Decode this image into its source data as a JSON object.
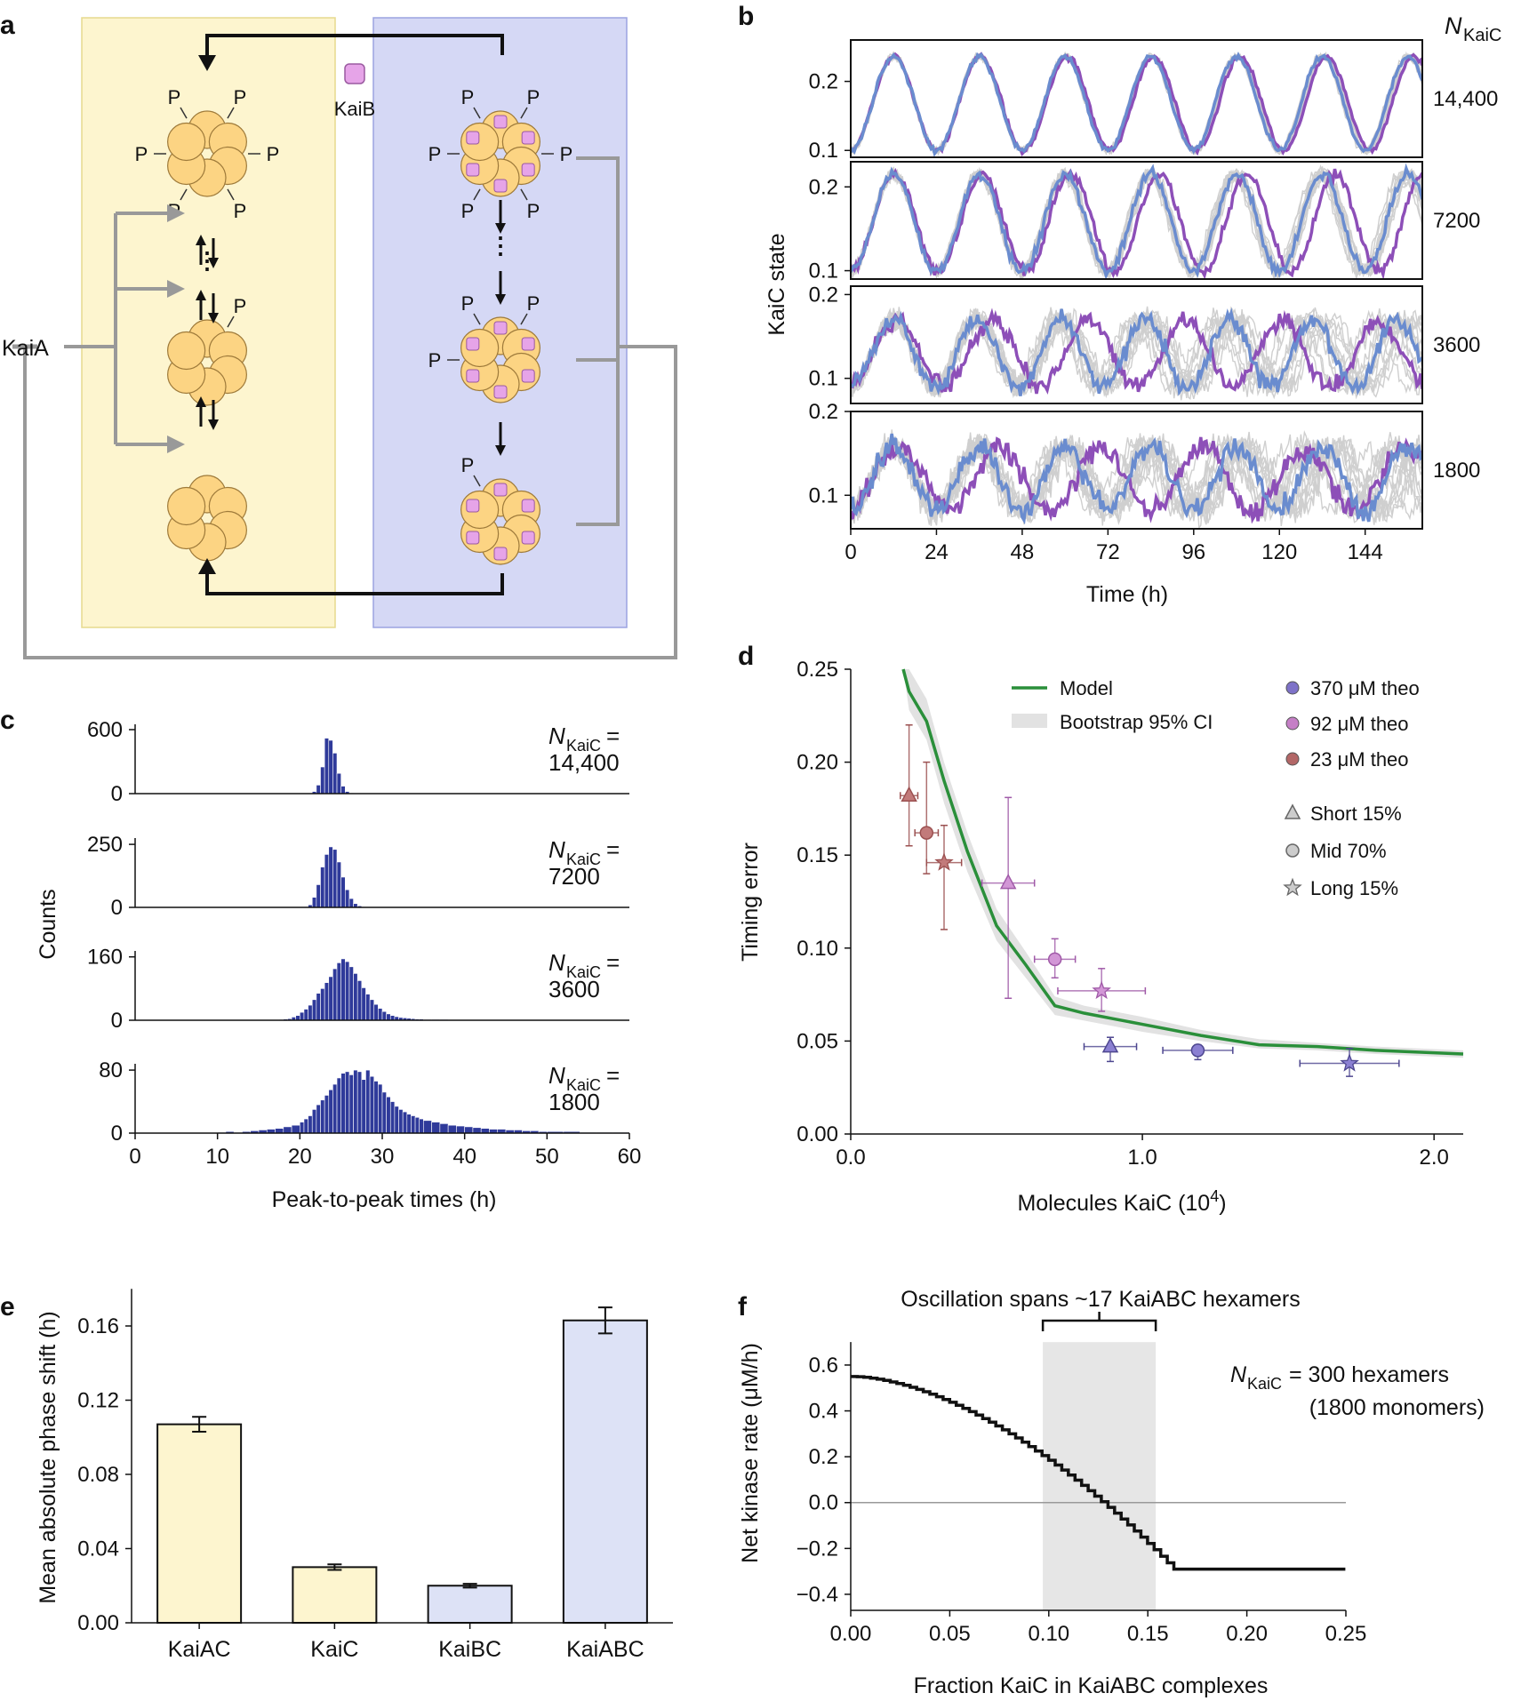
{
  "panel_labels": [
    "a",
    "b",
    "c",
    "d",
    "e",
    "f"
  ],
  "panel_a": {
    "kaib_label": "KaiB",
    "kaia_label": "KaiA",
    "phospho": "P",
    "ellipsis": "⋮",
    "colors": {
      "left_box": "#fdf5cf",
      "right_box": "#d5d8f5",
      "subunit": "#fcd483",
      "kaib": "#e6a4e8"
    }
  },
  "chart_data": [
    {
      "id": "b",
      "type": "line",
      "xlabel": "Time (h)",
      "ylabel": "KaiC state",
      "x_ticks": [
        0,
        24,
        48,
        72,
        96,
        120,
        144
      ],
      "xlim": [
        0,
        160
      ],
      "n_header_symbol": "N",
      "n_header_sub": "KaiC",
      "series_colors": {
        "trajectory_1": "#6a8ccf",
        "trajectory_2": "#8d4fb8",
        "ensemble": "#cfcfcf"
      },
      "rows": [
        {
          "n_label": "14,400",
          "ylim": [
            0.09,
            0.26
          ],
          "y_ticks": [
            0.1,
            0.2
          ],
          "y_tick_labels": [
            "0.1",
            "0.2"
          ],
          "mean": 0.168,
          "amp": 0.068,
          "period": 24.0,
          "drift": 0.0,
          "noise": 0.004,
          "period_b": 24.25,
          "spread": 0.5
        },
        {
          "n_label": "7200",
          "ylim": [
            0.09,
            0.23
          ],
          "y_ticks": [
            0.1,
            0.2
          ],
          "y_tick_labels": [
            "0.1",
            "0.2"
          ],
          "mean": 0.157,
          "amp": 0.058,
          "period": 24.0,
          "drift": 0.0,
          "noise": 0.006,
          "period_b": 24.7,
          "spread": 1.2
        },
        {
          "n_label": "3600",
          "ylim": [
            0.07,
            0.21
          ],
          "y_ticks": [
            0.1,
            0.2
          ],
          "y_tick_labels": [
            "0.1",
            "0.2"
          ],
          "mean": 0.13,
          "amp": 0.04,
          "period": 23.5,
          "drift": 0.0,
          "noise": 0.01,
          "period_b": 27.0,
          "spread": 2.5
        },
        {
          "n_label": "1800",
          "ylim": [
            0.06,
            0.2
          ],
          "y_ticks": [
            0.1,
            0.2
          ],
          "y_tick_labels": [
            "0.1",
            "0.2"
          ],
          "mean": 0.12,
          "amp": 0.038,
          "period": 24.0,
          "drift": 0.0,
          "noise": 0.013,
          "period_b": 28.5,
          "spread": 4.0
        }
      ]
    },
    {
      "id": "c",
      "type": "bar",
      "title": "Peak-to-peak times histograms",
      "xlabel": "Peak-to-peak times (h)",
      "ylabel": "Counts",
      "xlim": [
        0,
        60
      ],
      "x_ticks": [
        0,
        10,
        20,
        30,
        40,
        50,
        60
      ],
      "bar_color": "#2f3a9a",
      "rows": [
        {
          "n_label_1": "N",
          "n_label_sub": "KaiC",
          "n_label_eq": " =",
          "n_label_value": "14,400",
          "y_ticks": [
            0,
            600
          ],
          "ymax": 650,
          "bins": [
            21.5,
            22,
            22.5,
            23,
            23.5,
            24,
            24.5,
            25,
            25.5,
            26
          ],
          "values": [
            20,
            80,
            250,
            520,
            500,
            380,
            190,
            70,
            20,
            5
          ]
        },
        {
          "n_label_1": "N",
          "n_label_sub": "KaiC",
          "n_label_eq": " =",
          "n_label_value": "7200",
          "y_ticks": [
            0,
            250
          ],
          "ymax": 275,
          "bins": [
            20.5,
            21,
            21.5,
            22,
            22.5,
            23,
            23.5,
            24,
            24.5,
            25,
            25.5,
            26,
            26.5,
            27,
            27.5
          ],
          "values": [
            3,
            10,
            40,
            90,
            160,
            210,
            240,
            230,
            180,
            120,
            70,
            35,
            15,
            6,
            2
          ]
        },
        {
          "n_label_1": "N",
          "n_label_sub": "KaiC",
          "n_label_eq": " =",
          "n_label_value": "3600",
          "y_ticks": [
            0,
            160
          ],
          "ymax": 175,
          "bins": [
            17,
            17.5,
            18,
            18.5,
            19,
            19.5,
            20,
            20.5,
            21,
            21.5,
            22,
            22.5,
            23,
            23.5,
            24,
            24.5,
            25,
            25.5,
            26,
            26.5,
            27,
            27.5,
            28,
            28.5,
            29,
            29.5,
            30,
            30.5,
            31,
            31.5,
            32,
            32.5,
            33,
            33.5,
            34,
            34.5,
            35,
            36,
            37,
            38,
            39,
            40,
            41,
            42
          ],
          "values": [
            1,
            2,
            3,
            4,
            8,
            12,
            20,
            28,
            38,
            52,
            68,
            80,
            95,
            110,
            130,
            145,
            155,
            148,
            135,
            118,
            100,
            82,
            66,
            52,
            40,
            30,
            22,
            16,
            12,
            9,
            7,
            6,
            5,
            4,
            3,
            3,
            2,
            2,
            2,
            1,
            1,
            1,
            1,
            1
          ]
        },
        {
          "n_label_1": "N",
          "n_label_sub": "KaiC",
          "n_label_eq": " =",
          "n_label_value": "1800",
          "y_ticks": [
            0,
            80
          ],
          "ymax": 88,
          "bins": [
            10,
            11,
            12,
            13,
            14,
            15,
            16,
            17,
            18,
            19,
            20,
            20.5,
            21,
            21.5,
            22,
            22.5,
            23,
            23.5,
            24,
            24.5,
            25,
            25.5,
            26,
            26.5,
            27,
            27.5,
            28,
            28.5,
            29,
            29.5,
            30,
            30.5,
            31,
            31.5,
            32,
            32.5,
            33,
            33.5,
            34,
            34.5,
            35,
            36,
            37,
            38,
            39,
            40,
            41,
            42,
            43,
            44,
            45,
            46,
            47,
            48,
            49,
            50,
            52,
            54,
            56,
            58
          ],
          "values": [
            1,
            2,
            1,
            2,
            3,
            4,
            5,
            6,
            8,
            10,
            14,
            18,
            22,
            30,
            36,
            42,
            48,
            55,
            62,
            70,
            76,
            78,
            74,
            80,
            78,
            68,
            80,
            72,
            66,
            62,
            52,
            46,
            40,
            34,
            30,
            27,
            24,
            22,
            20,
            18,
            16,
            14,
            12,
            10,
            9,
            8,
            7,
            6,
            5,
            5,
            4,
            4,
            3,
            3,
            2,
            2,
            2,
            1,
            1,
            1
          ]
        }
      ]
    },
    {
      "id": "d",
      "type": "scatter",
      "xlabel_main": "Molecules KaiC (10",
      "xlabel_sup": "4",
      "xlabel_end": ")",
      "ylabel": "Timing error",
      "xlim": [
        0,
        2.1
      ],
      "ylim": [
        0,
        0.25
      ],
      "x_ticks": [
        0.0,
        1.0,
        2.0
      ],
      "x_tick_labels": [
        "0.0",
        "1.0",
        "2.0"
      ],
      "y_ticks": [
        0.0,
        0.05,
        0.1,
        0.15,
        0.2,
        0.25
      ],
      "y_tick_labels": [
        "0.00",
        "0.05",
        "0.10",
        "0.15",
        "0.20",
        "0.25"
      ],
      "model_curve": {
        "name": "Model",
        "color": "#2a8f3a",
        "x": [
          0.18,
          0.2,
          0.26,
          0.32,
          0.4,
          0.5,
          0.6,
          0.7,
          0.8,
          0.9,
          1.0,
          1.2,
          1.4,
          1.6,
          1.8,
          2.1
        ],
        "y": [
          0.25,
          0.238,
          0.222,
          0.19,
          0.152,
          0.112,
          0.091,
          0.069,
          0.065,
          0.062,
          0.059,
          0.053,
          0.048,
          0.047,
          0.045,
          0.043
        ]
      },
      "ci_band": {
        "name": "Bootstrap 95% CI",
        "color": "#e2e2e2",
        "x": [
          0.18,
          0.2,
          0.26,
          0.32,
          0.4,
          0.5,
          0.6,
          0.7,
          0.8,
          0.9,
          1.0,
          1.2,
          1.4,
          1.6,
          1.8,
          2.1
        ],
        "lower": [
          0.25,
          0.228,
          0.212,
          0.178,
          0.141,
          0.104,
          0.084,
          0.064,
          0.061,
          0.058,
          0.055,
          0.05,
          0.046,
          0.045,
          0.043,
          0.041
        ],
        "upper": [
          0.25,
          0.25,
          0.234,
          0.2,
          0.162,
          0.121,
          0.098,
          0.074,
          0.069,
          0.066,
          0.063,
          0.056,
          0.051,
          0.049,
          0.047,
          0.045
        ]
      },
      "legend_left": [
        {
          "label": "Model",
          "kind": "line"
        },
        {
          "label": "Bootstrap 95% CI",
          "kind": "band"
        }
      ],
      "legend_conc": [
        {
          "label_num": "370 ",
          "label_unit": "μM theo",
          "color": "#7e72c8"
        },
        {
          "label_num": "92 ",
          "label_unit": "μM theo",
          "color": "#c57fc6"
        },
        {
          "label_num": "23 ",
          "label_unit": "μM theo",
          "color": "#b36767"
        }
      ],
      "legend_shape": [
        {
          "label": "Short 15%",
          "shape": "triangle"
        },
        {
          "label": "Mid 70%",
          "shape": "circle"
        },
        {
          "label": "Long 15%",
          "shape": "star"
        }
      ],
      "points": [
        {
          "x": 0.2,
          "y": 0.182,
          "xerr": 0.03,
          "ylo": 0.155,
          "yhi": 0.22,
          "shape": "triangle",
          "color": "#c27a7a",
          "edge": "#9b5050"
        },
        {
          "x": 0.26,
          "y": 0.162,
          "xerr": 0.04,
          "ylo": 0.14,
          "yhi": 0.2,
          "shape": "circle",
          "color": "#c27a7a",
          "edge": "#9b5050"
        },
        {
          "x": 0.32,
          "y": 0.146,
          "xerr": 0.06,
          "ylo": 0.11,
          "yhi": 0.166,
          "shape": "star",
          "color": "#c27a7a",
          "edge": "#9b5050"
        },
        {
          "x": 0.54,
          "y": 0.135,
          "xerr": 0.09,
          "ylo": 0.073,
          "yhi": 0.181,
          "shape": "triangle",
          "color": "#d296d6",
          "edge": "#a05aa8"
        },
        {
          "x": 0.7,
          "y": 0.094,
          "xerr": 0.07,
          "ylo": 0.084,
          "yhi": 0.105,
          "shape": "circle",
          "color": "#d296d6",
          "edge": "#a05aa8"
        },
        {
          "x": 0.86,
          "y": 0.077,
          "xerr": 0.15,
          "ylo": 0.066,
          "yhi": 0.089,
          "shape": "star",
          "color": "#d296d6",
          "edge": "#a05aa8"
        },
        {
          "x": 0.89,
          "y": 0.047,
          "xerr": 0.09,
          "ylo": 0.039,
          "yhi": 0.052,
          "shape": "triangle",
          "color": "#8b80d2",
          "edge": "#4d468f"
        },
        {
          "x": 1.19,
          "y": 0.045,
          "xerr": 0.12,
          "ylo": 0.04,
          "yhi": 0.048,
          "shape": "circle",
          "color": "#8b80d2",
          "edge": "#4d468f"
        },
        {
          "x": 1.71,
          "y": 0.038,
          "xerr": 0.17,
          "ylo": 0.031,
          "yhi": 0.046,
          "shape": "star",
          "color": "#8b80d2",
          "edge": "#4d468f"
        }
      ]
    },
    {
      "id": "e",
      "type": "bar",
      "ylabel": "Mean absolute phase shift (h)",
      "ylim": [
        0,
        0.18
      ],
      "y_ticks": [
        0.0,
        0.04,
        0.08,
        0.12,
        0.16
      ],
      "y_tick_labels": [
        "0.00",
        "0.04",
        "0.08",
        "0.12",
        "0.16"
      ],
      "categories": [
        "KaiAC",
        "KaiC",
        "KaiBC",
        "KaiABC"
      ],
      "values": [
        0.107,
        0.03,
        0.02,
        0.163
      ],
      "errors": [
        0.004,
        0.0015,
        0.001,
        0.007
      ],
      "colors": [
        "#fdf5cf",
        "#fdf5cf",
        "#dde2f6",
        "#dde2f6"
      ]
    },
    {
      "id": "f",
      "type": "line",
      "xlabel": "Fraction KaiC in KaiABC complexes",
      "ylabel": "Net kinase rate (μM/h)",
      "xlim": [
        0,
        0.25
      ],
      "ylim": [
        -0.47,
        0.72
      ],
      "x_ticks": [
        0.0,
        0.05,
        0.1,
        0.15,
        0.2,
        0.25
      ],
      "x_tick_labels": [
        "0.00",
        "0.05",
        "0.10",
        "0.15",
        "0.20",
        "0.25"
      ],
      "y_ticks": [
        -0.4,
        -0.2,
        0.0,
        0.2,
        0.4,
        0.6
      ],
      "y_tick_labels": [
        "−0.4",
        "−0.2",
        "0.0",
        "0.2",
        "0.4",
        "0.6"
      ],
      "shaded_region": [
        0.097,
        0.154
      ],
      "annotation": "Oscillation spans ~17 KaiABC hexamers",
      "n_text_symbol": "N",
      "n_text_sub": "KaiC",
      "n_text_rest": " = 300 hexamers",
      "n_text_line2": "(1800 monomers)",
      "curve": {
        "start": 0.55,
        "end_x": 0.163,
        "end_y": -0.29,
        "flat_y": -0.29,
        "step": 0.00333
      }
    }
  ]
}
